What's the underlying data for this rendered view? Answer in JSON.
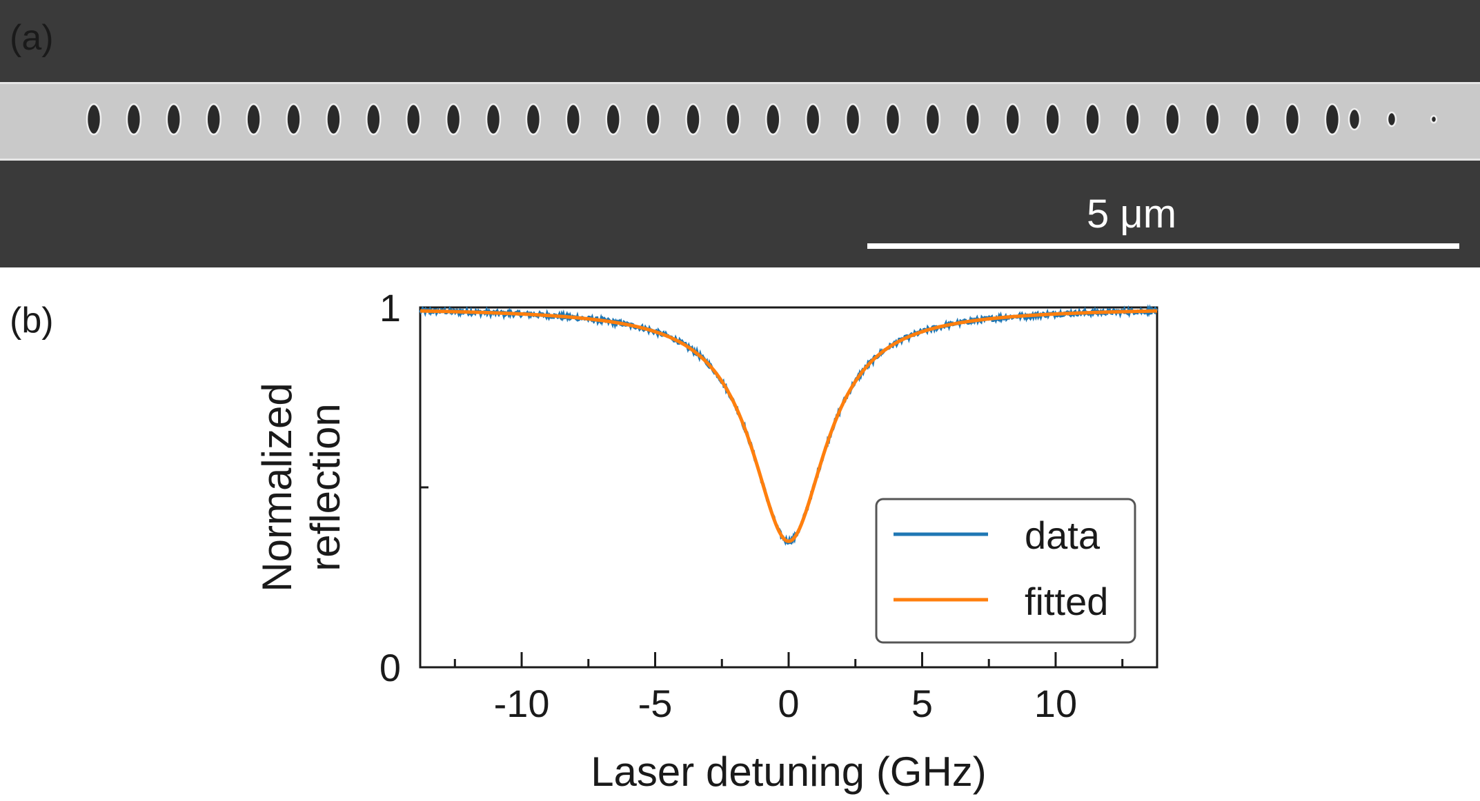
{
  "panel_a": {
    "label": "(a)",
    "scale_bar_label": "5 μm",
    "colors": {
      "background": "#3a3a3a",
      "waveguide": "#c9c9c9",
      "holes": "#2a2a2a"
    }
  },
  "panel_b": {
    "label": "(b)"
  },
  "chart_data": {
    "type": "line",
    "title": "",
    "xlabel": "Laser detuning (GHz)",
    "ylabel_lines": [
      "Normalized",
      "reflection"
    ],
    "xlim": [
      -13.8,
      13.8
    ],
    "ylim": [
      0,
      1
    ],
    "xticks": [
      -10,
      -5,
      0,
      5,
      10
    ],
    "xtick_labels": [
      "-10",
      "-5",
      "0",
      "5",
      "10"
    ],
    "yticks": [
      0,
      1
    ],
    "ytick_labels": [
      "0",
      "1"
    ],
    "grid": false,
    "legend_placement": "lower-right",
    "series": [
      {
        "name": "data",
        "color": "#1f77b4",
        "model": "lorentzian-dip",
        "center": 0,
        "fwhm_ghz": 3.4,
        "baseline": 1.0,
        "minimum": 0.35,
        "noise": 0.006
      },
      {
        "name": "fitted",
        "color": "#ff7f0e",
        "model": "lorentzian-dip",
        "center": 0,
        "fwhm_ghz": 3.4,
        "baseline": 1.0,
        "minimum": 0.35
      }
    ]
  }
}
